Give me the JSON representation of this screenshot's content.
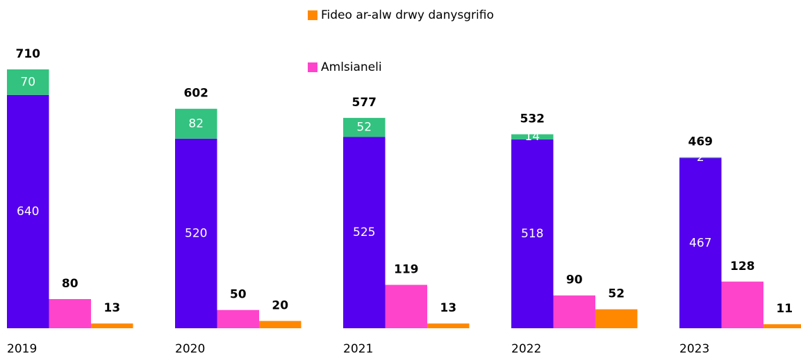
{
  "chart_data": {
    "type": "bar",
    "categories": [
      "2019",
      "2020",
      "2021",
      "2022",
      "2023"
    ],
    "series": [
      {
        "color": "#5500ee",
        "values": [
          640,
          520,
          525,
          518,
          467
        ]
      },
      {
        "color": "#33c27f",
        "values": [
          70,
          82,
          52,
          14,
          2
        ]
      },
      {
        "name": "Amlsianeli",
        "color": "#ff44cc",
        "values": [
          80,
          50,
          119,
          90,
          128
        ]
      },
      {
        "name": "Fideo ar-alw drwy danysgrifio",
        "color": "#ff8800",
        "values": [
          13,
          20,
          13,
          52,
          11
        ]
      }
    ],
    "totals": [
      710,
      602,
      577,
      532,
      469
    ]
  }
}
